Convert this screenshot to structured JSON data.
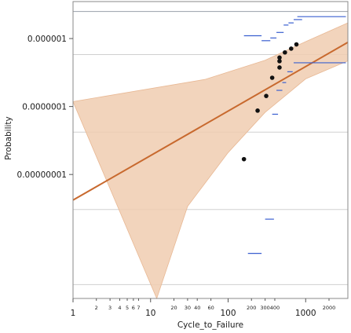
{
  "chart_data": {
    "type": "scatter",
    "title": "",
    "xlabel": "Cycle_to_Failure",
    "ylabel": "Probability",
    "xscale": "log",
    "yscale": "log",
    "xlim": [
      1,
      3500
    ],
    "ylim": [
      1.5e-10,
      3.5e-06
    ],
    "x_ticks": [
      {
        "value": 1,
        "label": "1",
        "size": "major"
      },
      {
        "value": 2,
        "label": "2",
        "size": "minor"
      },
      {
        "value": 3,
        "label": "3",
        "size": "minor"
      },
      {
        "value": 4,
        "label": "4",
        "size": "minor"
      },
      {
        "value": 5,
        "label": "5",
        "size": "minor"
      },
      {
        "value": 6,
        "label": "6",
        "size": "minor"
      },
      {
        "value": 7,
        "label": "7",
        "size": "minor"
      },
      {
        "value": 10,
        "label": "10",
        "size": "major"
      },
      {
        "value": 20,
        "label": "20",
        "size": "minor"
      },
      {
        "value": 30,
        "label": "30",
        "size": "minor"
      },
      {
        "value": 40,
        "label": "40",
        "size": "minor"
      },
      {
        "value": 60,
        "label": "60",
        "size": "minor"
      },
      {
        "value": 100,
        "label": "100",
        "size": "major"
      },
      {
        "value": 200,
        "label": "200",
        "size": "minor"
      },
      {
        "value": 300,
        "label": "300",
        "size": "minor"
      },
      {
        "value": 400,
        "label": "400",
        "size": "minor"
      },
      {
        "value": 1000,
        "label": "1000",
        "size": "major"
      },
      {
        "value": 2000,
        "label": "2000",
        "size": "minor"
      }
    ],
    "y_ticks": [
      {
        "value": 1e-06,
        "label": "0.000001"
      },
      {
        "value": 1e-07,
        "label": "0.0000001"
      },
      {
        "value": 1e-08,
        "label": "0.00000001"
      }
    ],
    "y_gridlines": [
      2.5e-06,
      5.8e-07,
      4.2e-08,
      3.05e-09,
      2.4e-10
    ],
    "points": [
      {
        "x": 160,
        "y": 1.68e-08
      },
      {
        "x": 240,
        "y": 8.7e-08
      },
      {
        "x": 310,
        "y": 1.43e-07
      },
      {
        "x": 370,
        "y": 2.65e-07
      },
      {
        "x": 460,
        "y": 3.75e-07
      },
      {
        "x": 460,
        "y": 4.65e-07
      },
      {
        "x": 460,
        "y": 5.25e-07
      },
      {
        "x": 540,
        "y": 6.25e-07
      },
      {
        "x": 650,
        "y": 7.1e-07
      },
      {
        "x": 760,
        "y": 8.2e-07
      }
    ],
    "fit_line": {
      "x": [
        1,
        3500
      ],
      "y": [
        4.2e-09,
        8.8e-07
      ],
      "color": "#c8692e"
    },
    "confidence_band": {
      "color": "#f0ccb0",
      "lower": [
        [
          1,
          1.18e-07
        ],
        [
          15,
          1.9e-08
        ]
      ],
      "upper_lower_edge": [
        [
          1,
          1.36e-08
        ],
        [
          3500,
          1.2e-06
        ]
      ],
      "band_upper": [
        [
          1,
          1.18e-07
        ],
        [
          50,
          2.5e-07
        ],
        [
          300,
          4.8e-07
        ],
        [
          1000,
          9e-07
        ],
        [
          3500,
          1.7e-06
        ]
      ],
      "band_lower": [
        [
          3500,
          4.7e-07
        ],
        [
          1000,
          2.55e-07
        ],
        [
          300,
          8.2e-08
        ],
        [
          100,
          2.1e-08
        ],
        [
          30,
          3.4e-09
        ],
        [
          12,
          1.5e-10
        ]
      ]
    },
    "interval_segments": [
      {
        "x1": 160,
        "x2": 270,
        "y": 1.55e-11
      },
      {
        "x1": 180,
        "x2": 270,
        "y": 6.9e-10
      },
      {
        "x1": 300,
        "x2": 390,
        "y": 2.2e-09
      },
      {
        "x1": 370,
        "x2": 440,
        "y": 7.7e-08
      },
      {
        "x1": 420,
        "x2": 500,
        "y": 1.73e-07
      },
      {
        "x1": 500,
        "x2": 560,
        "y": 2.25e-07
      },
      {
        "x1": 580,
        "x2": 680,
        "y": 3.25e-07
      },
      {
        "x1": 700,
        "x2": 3300,
        "y": 4.4e-07
      },
      {
        "x1": 160,
        "x2": 270,
        "y": 1.1e-06
      },
      {
        "x1": 270,
        "x2": 350,
        "y": 9.3e-07
      },
      {
        "x1": 350,
        "x2": 420,
        "y": 1.02e-06
      },
      {
        "x1": 420,
        "x2": 520,
        "y": 1.23e-06
      },
      {
        "x1": 520,
        "x2": 600,
        "y": 1.58e-06
      },
      {
        "x1": 600,
        "x2": 700,
        "y": 1.7e-06
      },
      {
        "x1": 700,
        "x2": 900,
        "y": 1.9e-06
      },
      {
        "x1": 780,
        "x2": 3300,
        "y": 2.1e-06
      }
    ],
    "grid": true,
    "legend": "none"
  }
}
